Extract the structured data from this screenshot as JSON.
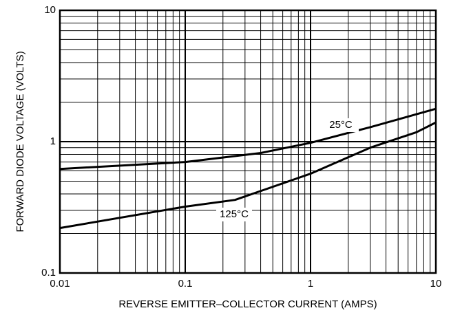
{
  "chart_data": {
    "type": "line",
    "xlabel": "REVERSE EMITTER–COLLECTOR CURRENT (AMPS)",
    "ylabel": "FORWARD DIODE VOLTAGE (VOLTS)",
    "xscale": "log",
    "yscale": "log",
    "grid": true,
    "minor_grid": true,
    "xlim": [
      0.01,
      10
    ],
    "xticks": [
      0.01,
      0.1,
      1,
      10
    ],
    "ylim": [
      0.1,
      10
    ],
    "yticks": [
      0.1,
      1,
      10
    ],
    "series": [
      {
        "name": "25°C",
        "color": "#000000",
        "x": [
          0.01,
          0.1,
          0.4,
          1,
          3,
          10
        ],
        "values": [
          0.62,
          0.7,
          0.82,
          0.98,
          1.29,
          1.78
        ]
      },
      {
        "name": "125°C",
        "color": "#000000",
        "x": [
          0.01,
          0.1,
          0.25,
          1,
          3,
          7,
          10
        ],
        "values": [
          0.22,
          0.32,
          0.36,
          0.57,
          0.9,
          1.18,
          1.4
        ]
      }
    ]
  }
}
